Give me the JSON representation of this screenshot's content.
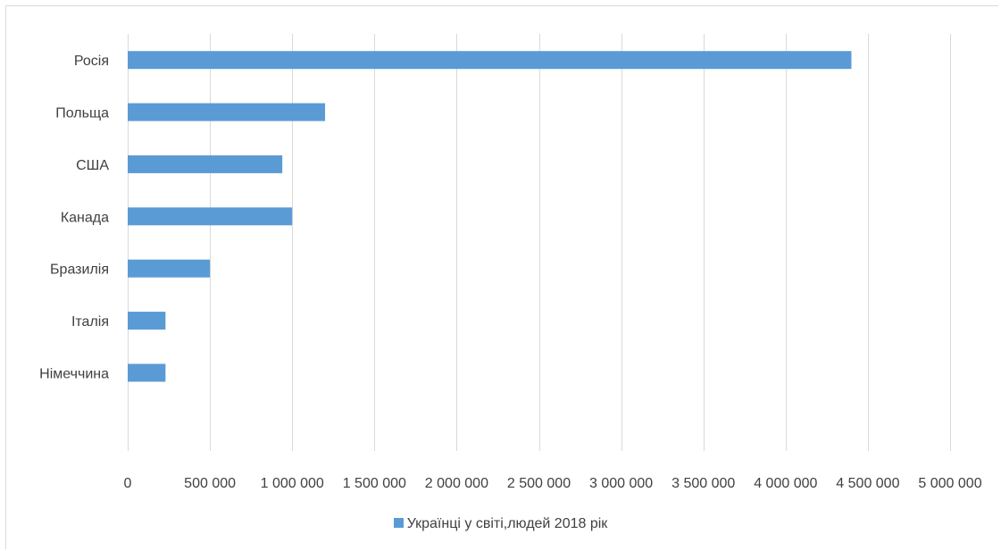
{
  "chart_data": {
    "type": "bar",
    "orientation": "horizontal",
    "categories": [
      "Росія",
      "Польща",
      "США",
      "Канада",
      "Бразилія",
      "Італія",
      "Німеччина"
    ],
    "series": [
      {
        "name": "Українці у світі,людей 2018 рік",
        "values": [
          4400000,
          1200000,
          940000,
          1000000,
          500000,
          230000,
          230000
        ],
        "color": "#5b9bd5"
      }
    ],
    "xlim": [
      0,
      5000000
    ],
    "x_ticks": [
      0,
      500000,
      1000000,
      1500000,
      2000000,
      2500000,
      3000000,
      3500000,
      4000000,
      4500000,
      5000000
    ],
    "x_tick_labels": [
      "0",
      "500 000",
      "1 000 000",
      "1 500 000",
      "2 000 000",
      "2 500 000",
      "3 000 000",
      "3 500 000",
      "4 000 000",
      "4 500 000",
      "5 000 000"
    ],
    "grid": "vertical",
    "legend": "bottom",
    "title": "",
    "xlabel": "",
    "ylabel": ""
  }
}
